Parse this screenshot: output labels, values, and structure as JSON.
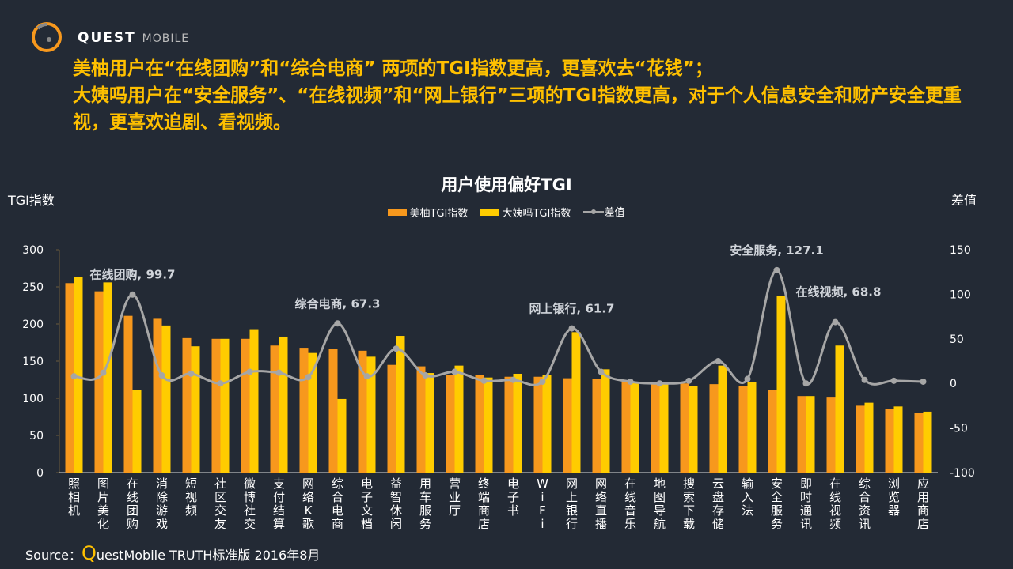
{
  "brand": {
    "name": "QUEST",
    "sub": "MOBILE"
  },
  "headline": [
    "美柚用户在“在线团购”和“综合电商” 两项的TGI指数更高，更喜欢去“花钱”；",
    "大姨吗用户在“安全服务”、“在线视频”和“网上银行”三项的TGI指数更高，对于个人信息安全和财产安全更重视，更喜欢追剧、看视频。"
  ],
  "source": {
    "prefix": "Source：",
    "q": "Q",
    "rest": "uestMobile TRUTH标准版 2016年8月"
  },
  "colors": {
    "s1": "#f7981d",
    "s2": "#ffcc00",
    "diff": "#a6a6a6"
  },
  "chart_data": {
    "type": "bar+line",
    "title": "用户使用偏好TGI",
    "ylabel": "TGI指数",
    "y2label": "差值",
    "ylim": [
      0,
      300
    ],
    "yticks": [
      "0",
      "50",
      "100",
      "150",
      "200",
      "250",
      "300"
    ],
    "y2lim": [
      -100,
      150
    ],
    "y2ticks": [
      "-100",
      "-50",
      "0",
      "50",
      "100",
      "150"
    ],
    "legend": [
      "美柚TGI指数",
      "大姨吗TGI指数",
      "差值"
    ],
    "categories": [
      "照相机",
      "图片美化",
      "在线团购",
      "消除游戏",
      "短视频",
      "社区交友",
      "微博社交",
      "支付结算",
      "网络K歌",
      "综合电商",
      "电子文档",
      "益智休闲",
      "用车服务",
      "营业厅",
      "终端商店",
      "电子书",
      "WiFi",
      "网上银行",
      "网络直播",
      "在线音乐",
      "地图导航",
      "搜索下载",
      "云盘存储",
      "输入法",
      "安全服务",
      "即时通讯",
      "在线视频",
      "综合资讯",
      "浏览器",
      "应用商店"
    ],
    "series": [
      {
        "name": "美柚TGI指数",
        "values": [
          255,
          244,
          211,
          207,
          181,
          180,
          180,
          171,
          168,
          166,
          164,
          145,
          143,
          131,
          131,
          129,
          129,
          127,
          126,
          124,
          120,
          120,
          119,
          117,
          111,
          103,
          102,
          90,
          86,
          80
        ]
      },
      {
        "name": "大姨吗TGI指数",
        "values": [
          263,
          256,
          111,
          198,
          170,
          180,
          193,
          183,
          161,
          99,
          156,
          184,
          134,
          144,
          128,
          133,
          131,
          189,
          139,
          122,
          120,
          117,
          144,
          122,
          238,
          103,
          171,
          94,
          89,
          82
        ]
      },
      {
        "name": "差值",
        "values": [
          8,
          12,
          99.7,
          9,
          11,
          0,
          13,
          12,
          7,
          67.3,
          8,
          39,
          9,
          13,
          3,
          4,
          2,
          61.7,
          13,
          2,
          0,
          3,
          25,
          5,
          127.1,
          0,
          68.8,
          4,
          3,
          2
        ]
      }
    ],
    "annotations": [
      {
        "index": 2,
        "text": "在线团购, 99.7"
      },
      {
        "index": 9,
        "text": "综合电商, 67.3"
      },
      {
        "index": 17,
        "text": "网上银行, 61.7"
      },
      {
        "index": 24,
        "text": "安全服务, 127.1"
      },
      {
        "index": 26,
        "text": "在线视频, 68.8"
      }
    ]
  }
}
